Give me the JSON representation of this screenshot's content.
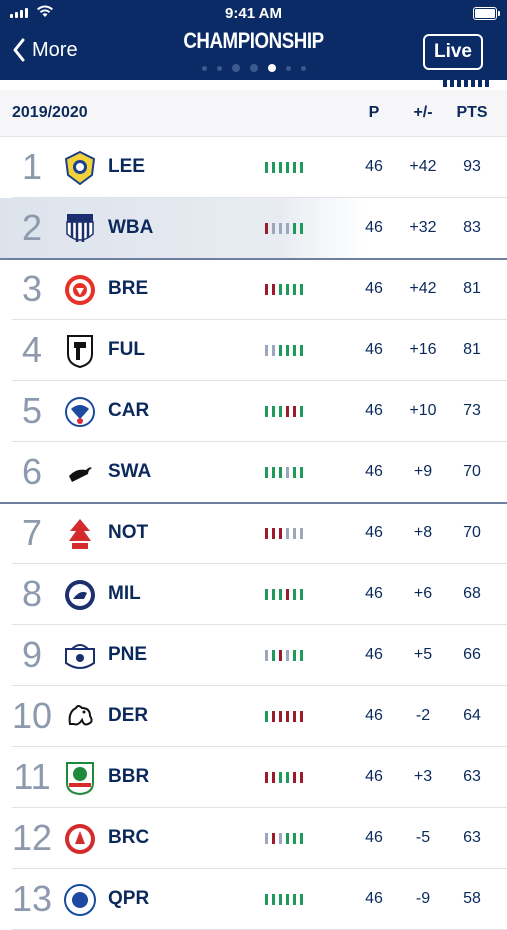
{
  "status_bar": {
    "time": "9:41 AM"
  },
  "nav": {
    "back_label": "More",
    "title": "CHAMPIONSHIP",
    "live_label": "Live",
    "page_dots": 6,
    "active_dot": 3
  },
  "colors": {
    "navy": "#0a2b66",
    "win": "#1f9a5b",
    "draw": "#9aa7bd",
    "loss": "#9b1b2a"
  },
  "table": {
    "season": "2019/2020",
    "columns": {
      "played": "P",
      "goal_diff": "+/-",
      "points": "PTS"
    },
    "rows": [
      {
        "pos": "1",
        "team": "LEE",
        "crest": "leeds-crest-icon",
        "form": [
          "W",
          "W",
          "W",
          "W",
          "W",
          "W"
        ],
        "p": "46",
        "gd": "+42",
        "pts": "93"
      },
      {
        "pos": "2",
        "team": "WBA",
        "crest": "wba-crest-icon",
        "form": [
          "L",
          "D",
          "D",
          "D",
          "W",
          "W"
        ],
        "p": "46",
        "gd": "+32",
        "pts": "83"
      },
      {
        "pos": "3",
        "team": "BRE",
        "crest": "brentford-crest-icon",
        "form": [
          "L",
          "L",
          "W",
          "W",
          "W",
          "W"
        ],
        "p": "46",
        "gd": "+42",
        "pts": "81"
      },
      {
        "pos": "4",
        "team": "FUL",
        "crest": "fulham-crest-icon",
        "form": [
          "D",
          "D",
          "W",
          "W",
          "W",
          "W"
        ],
        "p": "46",
        "gd": "+16",
        "pts": "81"
      },
      {
        "pos": "5",
        "team": "CAR",
        "crest": "cardiff-crest-icon",
        "form": [
          "W",
          "W",
          "W",
          "L",
          "L",
          "W"
        ],
        "p": "46",
        "gd": "+10",
        "pts": "73"
      },
      {
        "pos": "6",
        "team": "SWA",
        "crest": "swansea-crest-icon",
        "form": [
          "W",
          "W",
          "W",
          "D",
          "W",
          "W"
        ],
        "p": "46",
        "gd": "+9",
        "pts": "70"
      },
      {
        "pos": "7",
        "team": "NOT",
        "crest": "forest-crest-icon",
        "form": [
          "L",
          "L",
          "L",
          "D",
          "D",
          "D"
        ],
        "p": "46",
        "gd": "+8",
        "pts": "70"
      },
      {
        "pos": "8",
        "team": "MIL",
        "crest": "millwall-crest-icon",
        "form": [
          "W",
          "W",
          "W",
          "L",
          "W",
          "W"
        ],
        "p": "46",
        "gd": "+6",
        "pts": "68"
      },
      {
        "pos": "9",
        "team": "PNE",
        "crest": "preston-crest-icon",
        "form": [
          "D",
          "W",
          "L",
          "D",
          "W",
          "W"
        ],
        "p": "46",
        "gd": "+5",
        "pts": "66"
      },
      {
        "pos": "10",
        "team": "DER",
        "crest": "derby-crest-icon",
        "form": [
          "W",
          "L",
          "L",
          "L",
          "L",
          "L"
        ],
        "p": "46",
        "gd": "-2",
        "pts": "64"
      },
      {
        "pos": "11",
        "team": "BBR",
        "crest": "blackburn-crest-icon",
        "form": [
          "L",
          "L",
          "W",
          "W",
          "L",
          "L"
        ],
        "p": "46",
        "gd": "+3",
        "pts": "63"
      },
      {
        "pos": "12",
        "team": "BRC",
        "crest": "bristol-city-crest-icon",
        "form": [
          "D",
          "L",
          "D",
          "W",
          "W",
          "W"
        ],
        "p": "46",
        "gd": "-5",
        "pts": "63"
      },
      {
        "pos": "13",
        "team": "QPR",
        "crest": "qpr-crest-icon",
        "form": [
          "W",
          "W",
          "W",
          "W",
          "W",
          "W"
        ],
        "p": "46",
        "gd": "-9",
        "pts": "58"
      }
    ]
  }
}
